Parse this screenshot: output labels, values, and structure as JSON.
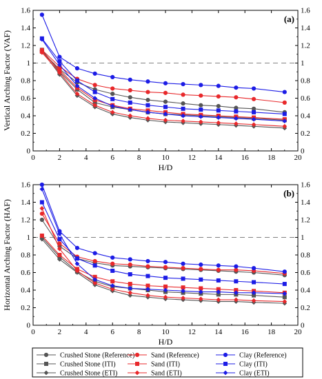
{
  "chart_data": [
    {
      "type": "line",
      "panel_label": "(a)",
      "xlabel": "H/D",
      "ylabel": "Vertical Arching Factor (VAF)",
      "xlim": [
        0,
        20
      ],
      "ylim": [
        0,
        1.6
      ],
      "xticks": [
        0,
        2,
        4,
        6,
        8,
        10,
        12,
        14,
        16,
        18,
        20
      ],
      "yticks": [
        0,
        0.2,
        0.4,
        0.6,
        0.8,
        1,
        1.2,
        1.4,
        1.6
      ],
      "reference_line": 1,
      "x": [
        0.67,
        2,
        3.33,
        4.67,
        6,
        7.33,
        8.67,
        10,
        11.33,
        12.67,
        14,
        15.33,
        16.67,
        19
      ],
      "series": [
        {
          "name": "Crushed Stone (Reference)",
          "color": "#555555",
          "marker": "circle",
          "values": [
            1.13,
            0.93,
            0.78,
            0.7,
            0.65,
            0.61,
            0.58,
            0.56,
            0.54,
            0.52,
            0.51,
            0.49,
            0.48,
            0.44
          ]
        },
        {
          "name": "Crushed Stone (ITI)",
          "color": "#555555",
          "marker": "square",
          "values": [
            1.15,
            0.9,
            0.7,
            0.55,
            0.5,
            0.47,
            0.44,
            0.42,
            0.41,
            0.4,
            0.39,
            0.38,
            0.37,
            0.35
          ]
        },
        {
          "name": "Crushed Stone (ETI)",
          "color": "#555555",
          "marker": "diamond",
          "values": [
            1.14,
            0.87,
            0.63,
            0.5,
            0.42,
            0.38,
            0.35,
            0.33,
            0.32,
            0.31,
            0.3,
            0.29,
            0.28,
            0.26
          ]
        },
        {
          "name": "Sand (Reference)",
          "color": "#e8282b",
          "marker": "circle",
          "values": [
            1.15,
            0.96,
            0.82,
            0.75,
            0.71,
            0.69,
            0.67,
            0.66,
            0.64,
            0.63,
            0.62,
            0.61,
            0.59,
            0.55
          ]
        },
        {
          "name": "Sand (ITI)",
          "color": "#e8282b",
          "marker": "square",
          "values": [
            1.13,
            0.92,
            0.72,
            0.58,
            0.52,
            0.48,
            0.46,
            0.44,
            0.42,
            0.41,
            0.4,
            0.39,
            0.38,
            0.36
          ]
        },
        {
          "name": "Sand (ETI)",
          "color": "#e8282b",
          "marker": "diamond",
          "values": [
            1.12,
            0.89,
            0.65,
            0.52,
            0.44,
            0.4,
            0.37,
            0.35,
            0.34,
            0.33,
            0.32,
            0.31,
            0.3,
            0.28
          ]
        },
        {
          "name": "Clay (Reference)",
          "color": "#1c1ce6",
          "marker": "circle",
          "values": [
            1.55,
            1.07,
            0.94,
            0.88,
            0.84,
            0.81,
            0.79,
            0.77,
            0.76,
            0.75,
            0.74,
            0.72,
            0.71,
            0.67
          ]
        },
        {
          "name": "Clay (ITI)",
          "color": "#1c1ce6",
          "marker": "square",
          "values": [
            1.28,
            1.02,
            0.8,
            0.67,
            0.59,
            0.55,
            0.52,
            0.5,
            0.48,
            0.47,
            0.46,
            0.45,
            0.44,
            0.42
          ]
        },
        {
          "name": "Clay (ETI)",
          "color": "#1c1ce6",
          "marker": "diamond",
          "values": [
            1.27,
            0.98,
            0.74,
            0.6,
            0.51,
            0.47,
            0.44,
            0.42,
            0.4,
            0.39,
            0.38,
            0.37,
            0.36,
            0.34
          ]
        }
      ]
    },
    {
      "type": "line",
      "panel_label": "(b)",
      "xlabel": "H/D",
      "ylabel": "Horizontal Arching Factor (HAF)",
      "xlim": [
        0,
        20
      ],
      "ylim": [
        0,
        1.6
      ],
      "xticks": [
        0,
        2,
        4,
        6,
        8,
        10,
        12,
        14,
        16,
        18,
        20
      ],
      "yticks": [
        0,
        0.2,
        0.4,
        0.6,
        0.8,
        1,
        1.2,
        1.4,
        1.6
      ],
      "reference_line": 1,
      "x": [
        0.67,
        2,
        3.33,
        4.67,
        6,
        7.33,
        8.67,
        10,
        11.33,
        12.67,
        14,
        15.33,
        16.67,
        19
      ],
      "series": [
        {
          "name": "Crushed Stone (Reference)",
          "color": "#555555",
          "marker": "circle",
          "values": [
            1.2,
            0.9,
            0.76,
            0.71,
            0.68,
            0.67,
            0.66,
            0.65,
            0.64,
            0.63,
            0.62,
            0.61,
            0.6,
            0.57
          ]
        },
        {
          "name": "Crushed Stone (ITI)",
          "color": "#555555",
          "marker": "square",
          "values": [
            1.0,
            0.78,
            0.61,
            0.5,
            0.44,
            0.42,
            0.4,
            0.38,
            0.37,
            0.36,
            0.35,
            0.35,
            0.34,
            0.32
          ]
        },
        {
          "name": "Crushed Stone (ETI)",
          "color": "#555555",
          "marker": "diamond",
          "values": [
            0.98,
            0.75,
            0.6,
            0.46,
            0.39,
            0.34,
            0.32,
            0.3,
            0.29,
            0.28,
            0.27,
            0.27,
            0.26,
            0.25
          ]
        },
        {
          "name": "Sand (Reference)",
          "color": "#e8282b",
          "marker": "circle",
          "values": [
            1.27,
            0.93,
            0.78,
            0.73,
            0.7,
            0.69,
            0.67,
            0.66,
            0.65,
            0.64,
            0.63,
            0.63,
            0.62,
            0.59
          ]
        },
        {
          "name": "Sand (ITI)",
          "color": "#e8282b",
          "marker": "square",
          "values": [
            1.02,
            0.8,
            0.64,
            0.55,
            0.5,
            0.47,
            0.45,
            0.44,
            0.43,
            0.42,
            0.41,
            0.4,
            0.39,
            0.37
          ]
        },
        {
          "name": "Sand (ETI)",
          "color": "#e8282b",
          "marker": "diamond",
          "values": [
            1.33,
            0.87,
            0.62,
            0.48,
            0.41,
            0.37,
            0.34,
            0.32,
            0.31,
            0.3,
            0.29,
            0.29,
            0.28,
            0.27
          ]
        },
        {
          "name": "Clay (Reference)",
          "color": "#1c1ce6",
          "marker": "circle",
          "values": [
            1.6,
            1.07,
            0.88,
            0.82,
            0.77,
            0.75,
            0.73,
            0.72,
            0.7,
            0.69,
            0.68,
            0.67,
            0.65,
            0.61
          ]
        },
        {
          "name": "Clay (ITI)",
          "color": "#1c1ce6",
          "marker": "square",
          "values": [
            1.4,
            0.98,
            0.76,
            0.68,
            0.62,
            0.58,
            0.56,
            0.54,
            0.53,
            0.52,
            0.51,
            0.5,
            0.49,
            0.47
          ]
        },
        {
          "name": "Clay (ETI)",
          "color": "#1c1ce6",
          "marker": "diamond",
          "values": [
            1.55,
            1.04,
            0.7,
            0.52,
            0.45,
            0.42,
            0.41,
            0.4,
            0.39,
            0.38,
            0.38,
            0.37,
            0.37,
            0.36
          ]
        }
      ]
    }
  ],
  "legend": {
    "columns": [
      [
        "Crushed Stone (Reference)",
        "Crushed Stone (ITI)",
        "Crushed Stone (ETI)"
      ],
      [
        "Sand (Reference)",
        "Sand (ITI)",
        "Sand (ETI)"
      ],
      [
        "Clay (Reference)",
        "Clay (ITI)",
        "Clay (ETI)"
      ]
    ]
  }
}
